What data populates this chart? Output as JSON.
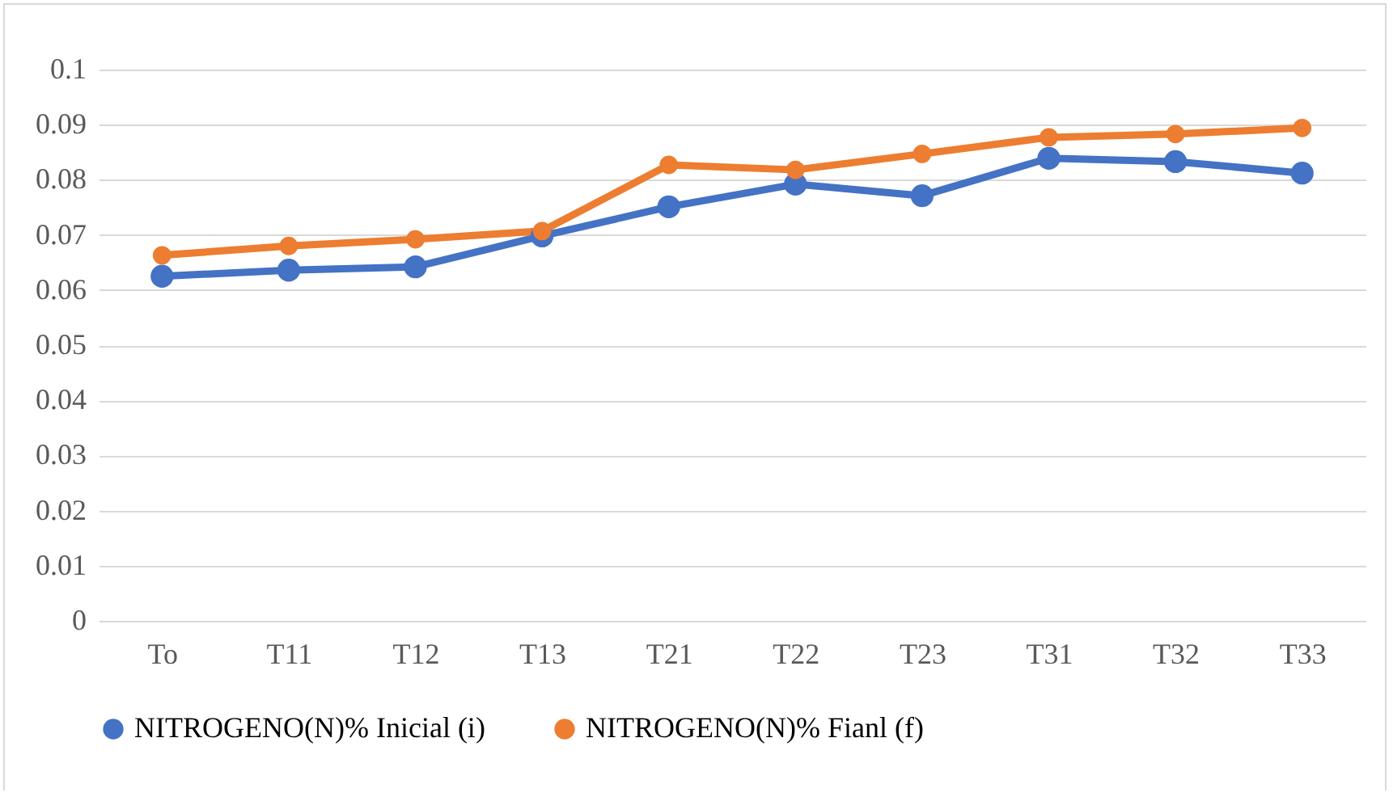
{
  "chart_data": {
    "type": "line",
    "categories": [
      "To",
      "T11",
      "T12",
      "T13",
      "T21",
      "T22",
      "T23",
      "T31",
      "T32",
      "T33"
    ],
    "series": [
      {
        "name": "NITROGENO(N)% Inicial (i)",
        "color": "#4472c4",
        "values": [
          0.0625,
          0.0636,
          0.0642,
          0.0698,
          0.0751,
          0.0792,
          0.0771,
          0.0839,
          0.0833,
          0.0812
        ]
      },
      {
        "name": "NITROGENO(N)% Fianl (f)",
        "color": "#ed7d31",
        "values": [
          0.0663,
          0.068,
          0.0692,
          0.0707,
          0.0827,
          0.0818,
          0.0847,
          0.0877,
          0.0883,
          0.0894
        ]
      }
    ],
    "ylim": [
      0,
      0.1
    ],
    "yticks": [
      0,
      0.01,
      0.02,
      0.03,
      0.04,
      0.05,
      0.06,
      0.07,
      0.08,
      0.09,
      0.1
    ],
    "grid": "y",
    "legend": "bottom",
    "marker": "circle",
    "line_style": "solid"
  }
}
